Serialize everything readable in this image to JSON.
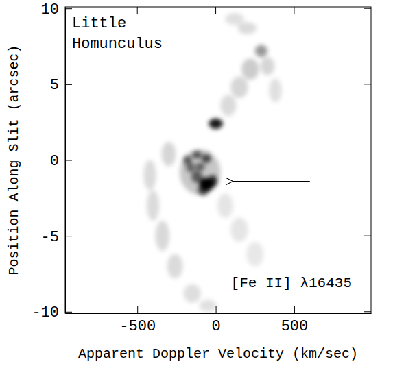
{
  "chart_data": {
    "type": "scatter",
    "marker": "blob",
    "color": "#000000",
    "title": "Little Homunculus",
    "annotation": "[Fe II] λ16435",
    "x_label": "Apparent Doppler Velocity (km/sec)",
    "y_label": "Position Along Slit (arcsec)",
    "xlim": [
      -960,
      990
    ],
    "ylim": [
      -10.1,
      10.1
    ],
    "xticks": [
      -500,
      0,
      500
    ],
    "yticks": [
      -10,
      -5,
      0,
      5,
      10
    ],
    "x": [
      0,
      -180,
      -120,
      -60,
      -100,
      -160,
      -100,
      -60,
      -20,
      -120,
      -80,
      80,
      150,
      220,
      290,
      330,
      200,
      120,
      380,
      -300,
      -420,
      -400,
      -340,
      -260,
      -150,
      -50,
      60,
      150,
      250
    ],
    "y": [
      2.4,
      0.0,
      0.35,
      0.1,
      -0.45,
      -0.5,
      -0.8,
      -1.6,
      -1.4,
      -1.1,
      -2.0,
      3.6,
      4.8,
      6.0,
      7.2,
      6.2,
      8.7,
      9.3,
      4.6,
      0.4,
      -1.0,
      -3.0,
      -5.0,
      -7.0,
      -8.8,
      -9.6,
      -3.0,
      -4.6,
      -6.2
    ],
    "intensity": [
      0.9,
      0.55,
      0.6,
      0.65,
      0.55,
      0.5,
      0.22,
      1.0,
      0.8,
      0.55,
      0.6,
      0.14,
      0.16,
      0.2,
      0.4,
      0.16,
      0.14,
      0.12,
      0.12,
      0.16,
      0.14,
      0.14,
      0.15,
      0.14,
      0.13,
      0.12,
      0.1,
      0.1,
      0.09
    ],
    "width_kms": [
      45,
      28,
      30,
      30,
      30,
      28,
      130,
      45,
      30,
      35,
      35,
      50,
      55,
      55,
      40,
      45,
      60,
      60,
      40,
      45,
      40,
      40,
      45,
      50,
      55,
      55,
      50,
      55,
      55
    ],
    "height_arcsec": [
      0.35,
      0.3,
      0.25,
      0.3,
      0.25,
      0.3,
      1.5,
      0.45,
      0.4,
      0.4,
      0.35,
      0.7,
      0.7,
      0.7,
      0.4,
      0.6,
      0.4,
      0.4,
      0.8,
      0.8,
      1.0,
      1.0,
      1.0,
      0.8,
      0.6,
      0.4,
      0.8,
      0.8,
      0.8
    ],
    "zero_line": {
      "y": 0,
      "gap": [
        -460,
        400
      ]
    },
    "arrow": {
      "x_from": 600,
      "x_to": 110,
      "y": -1.4
    }
  }
}
